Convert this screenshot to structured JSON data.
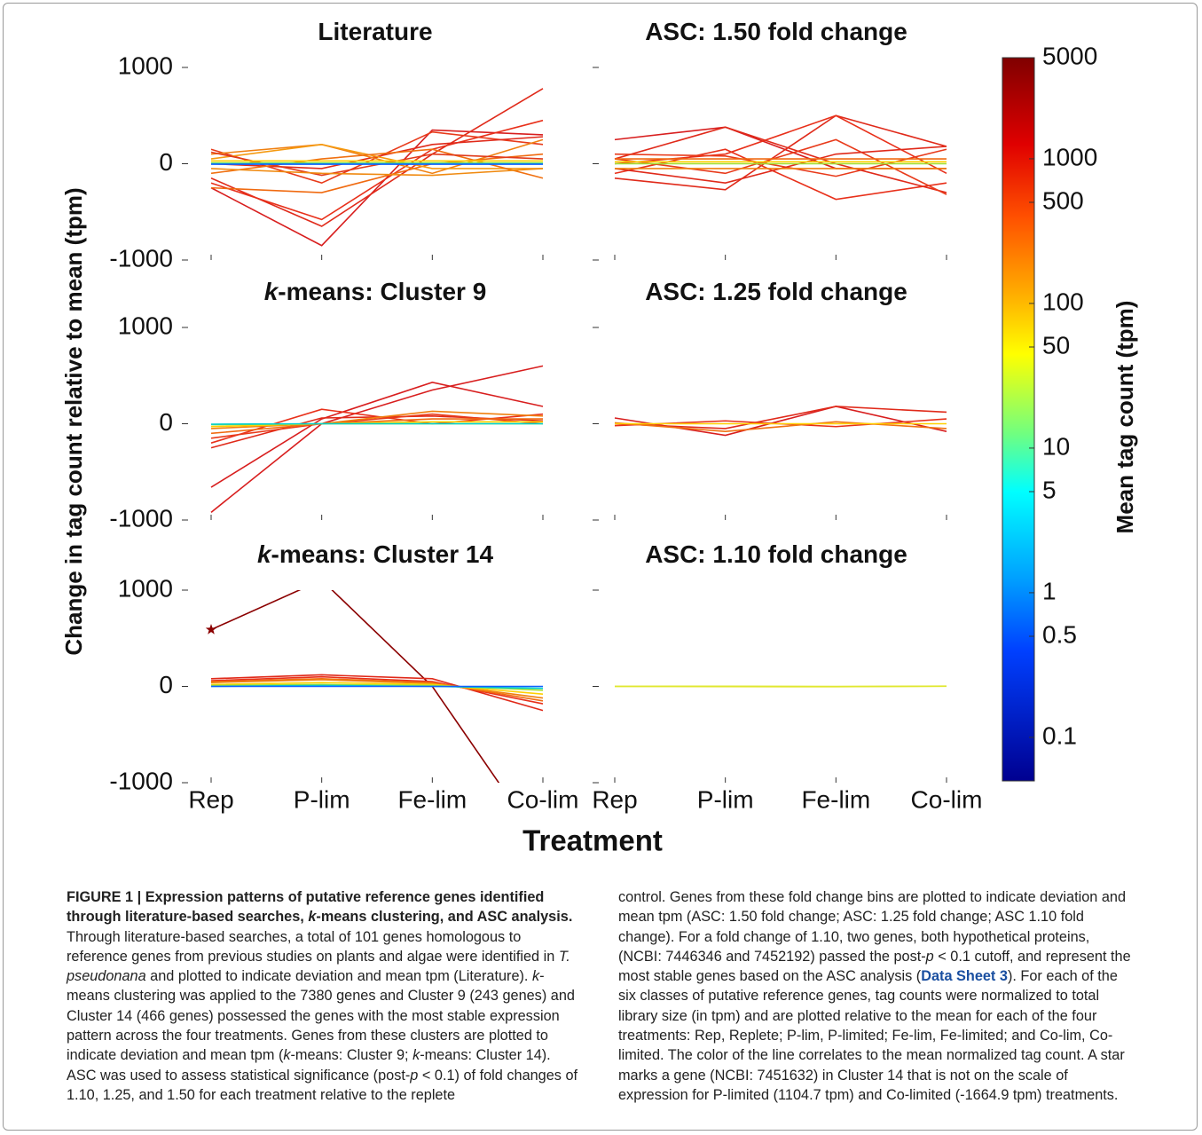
{
  "figure": {
    "ylabel": "Change in tag count relative to mean (tpm)",
    "xlabel": "Treatment",
    "colorbar": {
      "label": "Mean tag count (tpm)",
      "lim": [
        0.05,
        5000
      ],
      "log": true,
      "ticks": [
        0.1,
        0.5,
        1,
        5,
        10,
        50,
        100,
        500,
        1000,
        5000
      ]
    }
  },
  "chart_data": [
    {
      "type": "line",
      "title": [
        {
          "text": "Literature"
        }
      ],
      "ylim": [
        -1000,
        1000
      ],
      "yticks": [
        -1000,
        0,
        1000
      ],
      "ytick_labels": true,
      "series": [
        {
          "color": "#d81e1e",
          "values": [
            -250,
            -850,
            350,
            300
          ]
        },
        {
          "color": "#e02a1a",
          "values": [
            -150,
            -650,
            100,
            780
          ]
        },
        {
          "color": "#e8301a",
          "values": [
            -200,
            -580,
            150,
            450
          ]
        },
        {
          "color": "#e83a1a",
          "values": [
            150,
            -200,
            330,
            200
          ]
        },
        {
          "color": "#e02a1a",
          "values": [
            0,
            -50,
            200,
            280
          ]
        },
        {
          "color": "#f06a10",
          "values": [
            -250,
            -300,
            0,
            100
          ]
        },
        {
          "color": "#f08010",
          "values": [
            100,
            200,
            -100,
            250
          ]
        },
        {
          "color": "#f59a10",
          "values": [
            50,
            200,
            -50,
            -50
          ]
        },
        {
          "color": "#f07010",
          "values": [
            -100,
            50,
            150,
            -150
          ]
        },
        {
          "color": "#e03a1a",
          "values": [
            120,
            -120,
            100,
            50
          ]
        },
        {
          "color": "#f08a10",
          "values": [
            -50,
            -100,
            -120,
            -50
          ]
        },
        {
          "color": "#ffd000",
          "values": [
            30,
            30,
            30,
            30
          ]
        },
        {
          "color": "#a0e030",
          "values": [
            10,
            10,
            10,
            10
          ]
        },
        {
          "color": "#00d0d0",
          "values": [
            0,
            0,
            0,
            0
          ]
        },
        {
          "color": "#1060ff",
          "values": [
            -5,
            -5,
            -5,
            -5
          ]
        }
      ]
    },
    {
      "type": "line",
      "title": [
        {
          "text": "ASC: 1.50 fold change"
        }
      ],
      "ylim": [
        -1000,
        1000
      ],
      "yticks": [
        -1000,
        0,
        1000
      ],
      "ytick_labels": false,
      "series": [
        {
          "color": "#d81e1e",
          "values": [
            250,
            380,
            -50,
            -50
          ]
        },
        {
          "color": "#e02a1a",
          "values": [
            50,
            380,
            0,
            -300
          ]
        },
        {
          "color": "#e02a1a",
          "values": [
            -150,
            -270,
            500,
            180
          ]
        },
        {
          "color": "#e8301a",
          "values": [
            0,
            100,
            500,
            -100
          ]
        },
        {
          "color": "#e8301a",
          "values": [
            -100,
            150,
            -370,
            -200
          ]
        },
        {
          "color": "#e83a1a",
          "values": [
            50,
            -100,
            250,
            -320
          ]
        },
        {
          "color": "#e83a1a",
          "values": [
            100,
            80,
            -130,
            150
          ]
        },
        {
          "color": "#e02a1a",
          "values": [
            -50,
            -200,
            100,
            180
          ]
        },
        {
          "color": "#f06a10",
          "values": [
            50,
            50,
            50,
            50
          ]
        },
        {
          "color": "#f08010",
          "values": [
            -50,
            -50,
            -50,
            -50
          ]
        },
        {
          "color": "#ffd000",
          "values": [
            20,
            20,
            20,
            20
          ]
        },
        {
          "color": "#a0e030",
          "values": [
            0,
            0,
            0,
            0
          ]
        }
      ]
    },
    {
      "type": "line",
      "title": [
        {
          "text": "k",
          "style": "i"
        },
        {
          "text": "-means: Cluster 9"
        }
      ],
      "ylim": [
        -1000,
        1000
      ],
      "yticks": [
        -1000,
        0,
        1000
      ],
      "ytick_labels": true,
      "series": [
        {
          "color": "#d81e1e",
          "values": [
            -920,
            0,
            350,
            600
          ]
        },
        {
          "color": "#d81e1e",
          "values": [
            -660,
            50,
            430,
            180
          ]
        },
        {
          "color": "#e02a1a",
          "values": [
            -250,
            60,
            80,
            30
          ]
        },
        {
          "color": "#e8301a",
          "values": [
            -200,
            150,
            0,
            100
          ]
        },
        {
          "color": "#e83a1a",
          "values": [
            -150,
            0,
            100,
            0
          ]
        },
        {
          "color": "#f06a10",
          "values": [
            -100,
            0,
            50,
            50
          ]
        },
        {
          "color": "#f08010",
          "values": [
            -50,
            0,
            130,
            80
          ]
        },
        {
          "color": "#ffd000",
          "values": [
            -30,
            0,
            20,
            20
          ]
        },
        {
          "color": "#a0e030",
          "values": [
            -10,
            0,
            0,
            0
          ]
        },
        {
          "color": "#00d0d0",
          "values": [
            -5,
            0,
            0,
            0
          ]
        }
      ]
    },
    {
      "type": "line",
      "title": [
        {
          "text": "ASC: 1.25 fold change"
        }
      ],
      "ylim": [
        -1000,
        1000
      ],
      "yticks": [
        -1000,
        0,
        1000
      ],
      "ytick_labels": false,
      "series": [
        {
          "color": "#d81e1e",
          "values": [
            60,
            -120,
            180,
            -80
          ]
        },
        {
          "color": "#e02a1a",
          "values": [
            0,
            -50,
            180,
            120
          ]
        },
        {
          "color": "#e8301a",
          "values": [
            -20,
            30,
            -30,
            50
          ]
        },
        {
          "color": "#f07010",
          "values": [
            10,
            -80,
            20,
            -50
          ]
        },
        {
          "color": "#ffd000",
          "values": [
            0,
            0,
            0,
            0
          ]
        }
      ]
    },
    {
      "type": "line",
      "title": [
        {
          "text": "k",
          "style": "i"
        },
        {
          "text": "-means: Cluster 14"
        }
      ],
      "ylim": [
        -1000,
        1000
      ],
      "yticks": [
        -1000,
        0,
        1000
      ],
      "ytick_labels": true,
      "categories": [
        "Rep",
        "P-lim",
        "Fe-lim",
        "Co-lim"
      ],
      "series": [
        {
          "color": "#8b0000",
          "marker": "star",
          "values": [
            590,
            1104.7,
            0,
            -1664.9
          ]
        },
        {
          "color": "#e02a1a",
          "values": [
            80,
            120,
            80,
            -250
          ]
        },
        {
          "color": "#e8301a",
          "values": [
            60,
            100,
            50,
            -180
          ]
        },
        {
          "color": "#f06a10",
          "values": [
            50,
            80,
            40,
            -150
          ]
        },
        {
          "color": "#f08010",
          "values": [
            40,
            70,
            30,
            -120
          ]
        },
        {
          "color": "#ffd000",
          "values": [
            20,
            40,
            20,
            -80
          ]
        },
        {
          "color": "#a0e030",
          "values": [
            10,
            20,
            10,
            -40
          ]
        },
        {
          "color": "#00d0d0",
          "values": [
            0,
            10,
            0,
            -20
          ]
        },
        {
          "color": "#1060ff",
          "values": [
            0,
            0,
            0,
            0
          ]
        }
      ]
    },
    {
      "type": "line",
      "title": [
        {
          "text": "ASC: 1.10 fold change"
        }
      ],
      "ylim": [
        -1000,
        1000
      ],
      "yticks": [
        -1000,
        0,
        1000
      ],
      "ytick_labels": false,
      "categories": [
        "Rep",
        "P-lim",
        "Fe-lim",
        "Co-lim"
      ],
      "series": [
        {
          "color": "#e8e020",
          "values": [
            0,
            -2,
            -3,
            3
          ]
        },
        {
          "color": "#e0e830",
          "values": [
            1,
            2,
            -1,
            2
          ]
        }
      ]
    }
  ],
  "caption": {
    "columns": [
      [
        {
          "text": "FIGURE 1 | Expression patterns of putative reference genes identified through literature-based searches, ",
          "style": "b"
        },
        {
          "text": "k",
          "style": "bi"
        },
        {
          "text": "-means clustering, and ASC analysis.",
          "style": "b"
        },
        {
          "text": " Through literature-based searches, a total of 101 genes homologous to reference genes from previous studies on plants and algae were identified in "
        },
        {
          "text": "T. pseudonana",
          "style": "i"
        },
        {
          "text": " and plotted to indicate deviation and mean tpm (Literature). "
        },
        {
          "text": "k",
          "style": "i"
        },
        {
          "text": "-means clustering was applied to the 7380 genes and Cluster 9 (243 genes) and Cluster 14 (466 genes) possessed the genes with the most stable expression pattern across the four treatments. Genes from these clusters are plotted to indicate deviation and mean tpm ("
        },
        {
          "text": "k",
          "style": "i"
        },
        {
          "text": "-means: Cluster 9; "
        },
        {
          "text": "k",
          "style": "i"
        },
        {
          "text": "-means: Cluster 14). ASC was used to assess statistical significance (post-"
        },
        {
          "text": "p",
          "style": "i"
        },
        {
          "text": " < 0.1) of fold changes of 1.10, 1.25, and 1.50 for each treatment relative to the replete"
        }
      ],
      [
        {
          "text": "control. Genes from these fold change bins are plotted to indicate deviation and mean tpm (ASC: 1.50 fold change; ASC: 1.25 fold change; ASC 1.10 fold change). For a fold change of 1.10, two genes, both hypothetical proteins, (NCBI: 7446346 and 7452192) passed the post-"
        },
        {
          "text": "p",
          "style": "i"
        },
        {
          "text": " < 0.1 cutoff, and represent the most stable genes based on the ASC analysis ("
        },
        {
          "text": "Data Sheet 3",
          "style": "link"
        },
        {
          "text": "). For each of the six classes of putative reference genes, tag counts were normalized to total library size (in tpm) and are plotted relative to the mean for each of the four treatments: Rep, Replete; P-lim, P-limited; Fe-lim, Fe-limited; and Co-lim, Co-limited. The color of the line correlates to the mean normalized tag count. A star marks a gene (NCBI: 7451632) in Cluster 14 that is not on the scale of expression for P-limited (1104.7 tpm) and Co-limited (-1664.9 tpm) treatments."
        }
      ]
    ]
  }
}
